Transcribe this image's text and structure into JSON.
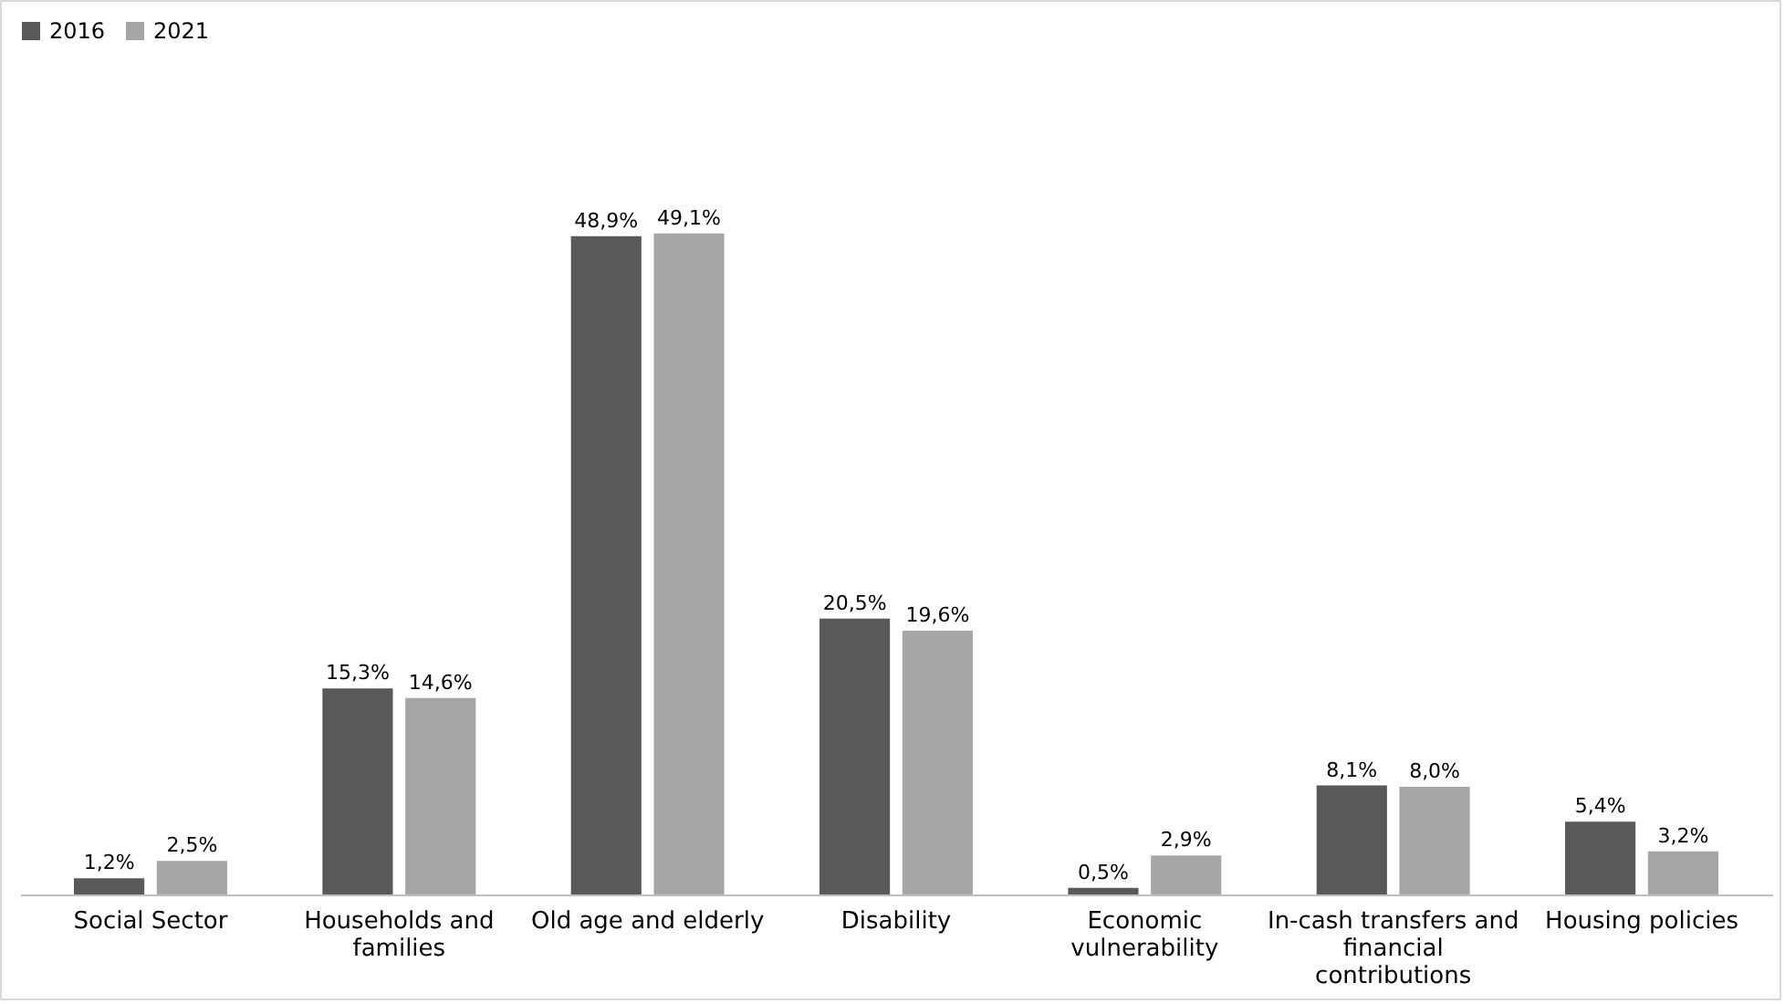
{
  "chart_data": {
    "type": "bar",
    "categories": [
      "Social Sector",
      "Households and families",
      "Old age and elderly",
      "Disability",
      "Economic vulnerability",
      "In-cash transfers and financial contributions",
      "Housing policies"
    ],
    "series": [
      {
        "name": "2016",
        "color": "#595959",
        "values": [
          1.2,
          15.3,
          48.9,
          20.5,
          0.5,
          8.1,
          5.4
        ],
        "value_labels": [
          "1,2%",
          "15,3%",
          "48,9%",
          "20,5%",
          "0,5%",
          "8,1%",
          "5,4%"
        ]
      },
      {
        "name": "2021",
        "color": "#a6a6a6",
        "values": [
          2.5,
          14.6,
          49.1,
          19.6,
          2.9,
          8.0,
          3.2
        ],
        "value_labels": [
          "2,5%",
          "14,6%",
          "49,1%",
          "19,6%",
          "2,9%",
          "8,0%",
          "3,2%"
        ]
      }
    ],
    "legend": "top",
    "grid": false
  }
}
